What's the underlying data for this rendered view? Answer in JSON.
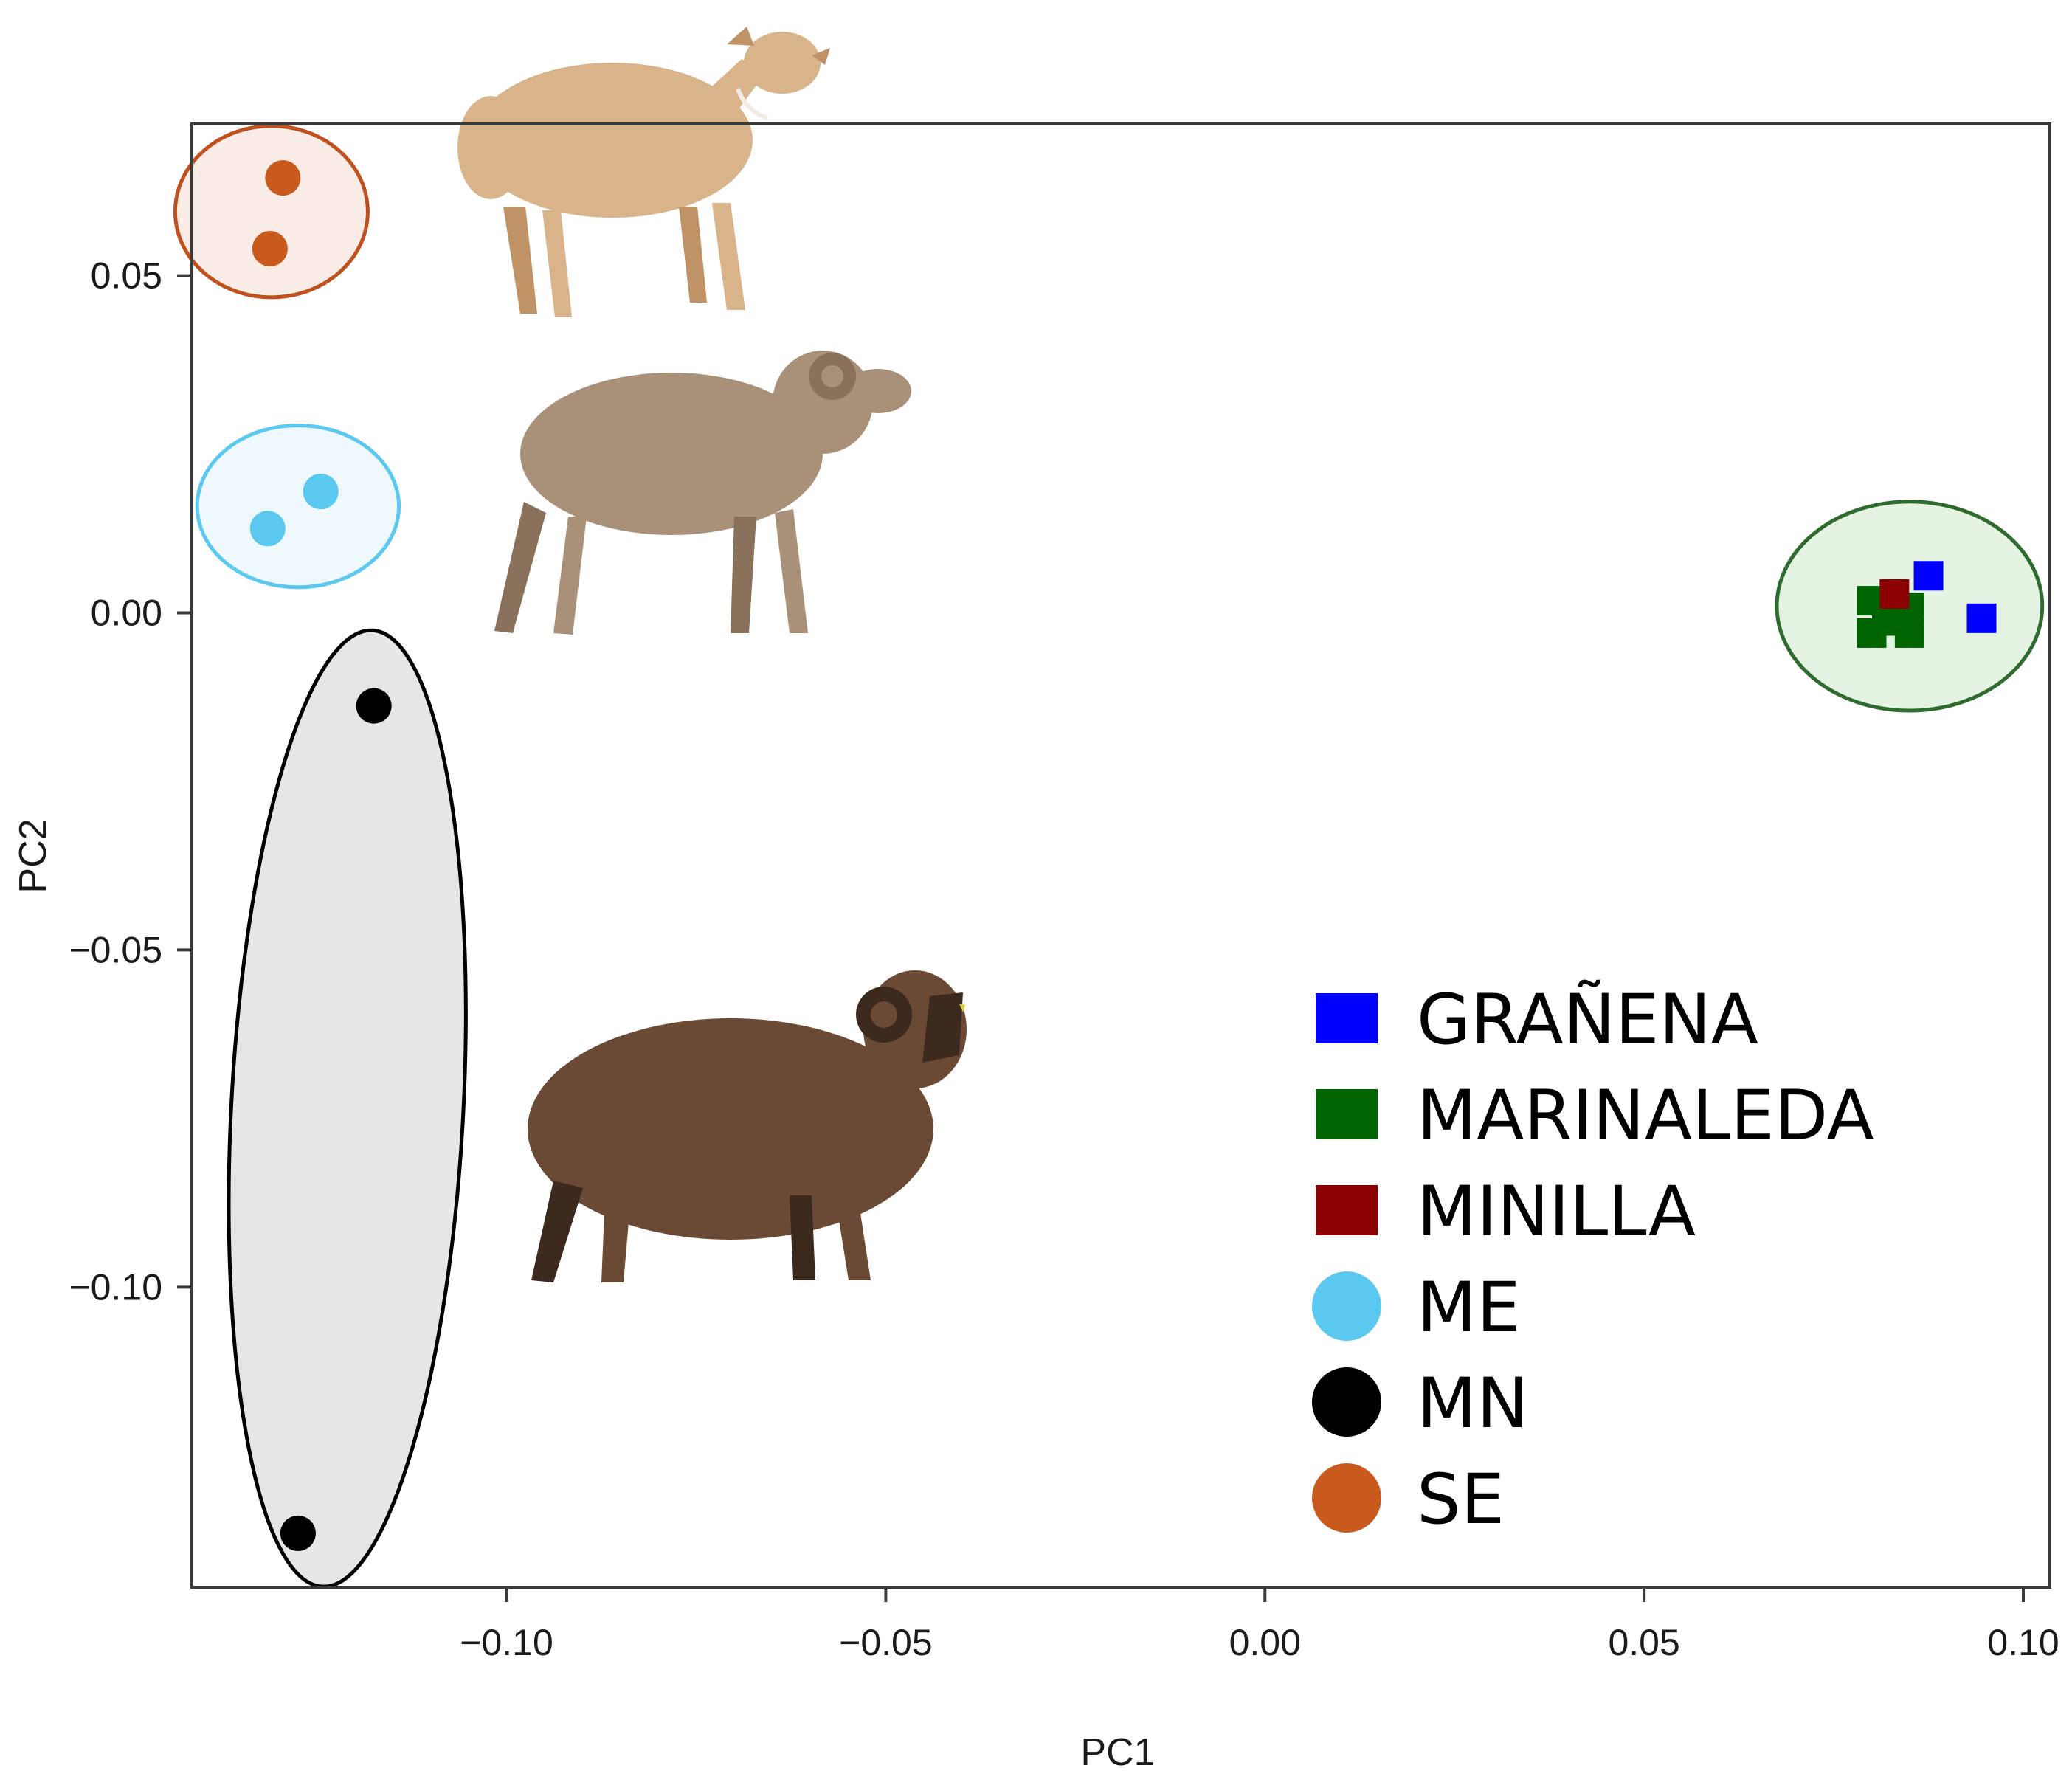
{
  "chart_data": {
    "type": "scatter",
    "xlabel": "PC1",
    "ylabel": "PC2",
    "xlim": [
      -0.1415,
      0.1035
    ],
    "ylim": [
      -0.1445,
      0.0725
    ],
    "x_ticks": [
      -0.1,
      -0.05,
      0.0,
      0.05,
      0.1
    ],
    "x_tick_labels": [
      "−0.10",
      "−0.05",
      "0.00",
      "0.05",
      "0.10"
    ],
    "y_ticks": [
      -0.1,
      -0.05,
      0.0,
      0.05
    ],
    "y_tick_labels": [
      "−0.10",
      "−0.05",
      "0.00",
      "0.05"
    ],
    "legend_position": "bottom-right",
    "series": [
      {
        "name": "GRAÑENA",
        "marker": "square",
        "color": "#0000ff",
        "points": [
          [
            0.0875,
            0.0055
          ],
          [
            0.0945,
            -0.0008
          ]
        ]
      },
      {
        "name": "MARINALEDA",
        "marker": "square",
        "color": "#006400",
        "points": [
          [
            0.08,
            0.0018
          ],
          [
            0.082,
            0.0005
          ],
          [
            0.085,
            0.0008
          ],
          [
            0.08,
            -0.003
          ],
          [
            0.085,
            -0.003
          ],
          [
            0.0835,
            -0.0012
          ]
        ]
      },
      {
        "name": "MINILLA",
        "marker": "square",
        "color": "#8b0000",
        "points": [
          [
            0.083,
            0.0028
          ]
        ]
      },
      {
        "name": "ME",
        "marker": "circle",
        "color": "#5bc8f0",
        "points": [
          [
            -0.1315,
            0.0125
          ],
          [
            -0.1245,
            0.018
          ]
        ]
      },
      {
        "name": "MN",
        "marker": "circle",
        "color": "#000000",
        "points": [
          [
            -0.1175,
            -0.0138
          ],
          [
            -0.1275,
            -0.1365
          ]
        ]
      },
      {
        "name": "SE",
        "marker": "circle",
        "color": "#c85a1e",
        "points": [
          [
            -0.1295,
            0.0645
          ],
          [
            -0.1312,
            0.054
          ]
        ]
      }
    ],
    "ellipses": [
      {
        "group": "SE",
        "center": [
          -0.131,
          0.0595
        ],
        "semi_axes": [
          0.0127,
          0.0127
        ],
        "rotation_deg": 0,
        "stroke": "#c0501e",
        "fill": "#f9ece6"
      },
      {
        "group": "ME",
        "center": [
          -0.1275,
          0.0158
        ],
        "semi_axes": [
          0.0133,
          0.012
        ],
        "rotation_deg": 0,
        "stroke": "#5bc8f0",
        "fill": "#eef8fd"
      },
      {
        "group": "MN",
        "center": [
          -0.121,
          -0.0735
        ],
        "semi_axes": [
          0.0153,
          0.071
        ],
        "rotation_deg": 3,
        "stroke": "#000000",
        "fill": "#e6e6e6"
      },
      {
        "group": "Spanish flocks",
        "center": [
          0.085,
          0.001
        ],
        "semi_axes": [
          0.0175,
          0.0155
        ],
        "rotation_deg": 0,
        "stroke": "#2e6b2e",
        "fill": "#e4f3e2"
      }
    ],
    "images": [
      {
        "name": "white-sheep-image",
        "depicts": "white short-wool ewe",
        "coat_color": "#d9b48a",
        "shade_color": "#bf9365"
      },
      {
        "name": "merino-ram-image",
        "depicts": "merino ram with curled horns",
        "coat_color": "#a99078",
        "shade_color": "#8a715b"
      },
      {
        "name": "black-ram-image",
        "depicts": "dark brown ram with curled horns",
        "coat_color": "#6b4a35",
        "shade_color": "#3d2a1e"
      }
    ]
  }
}
